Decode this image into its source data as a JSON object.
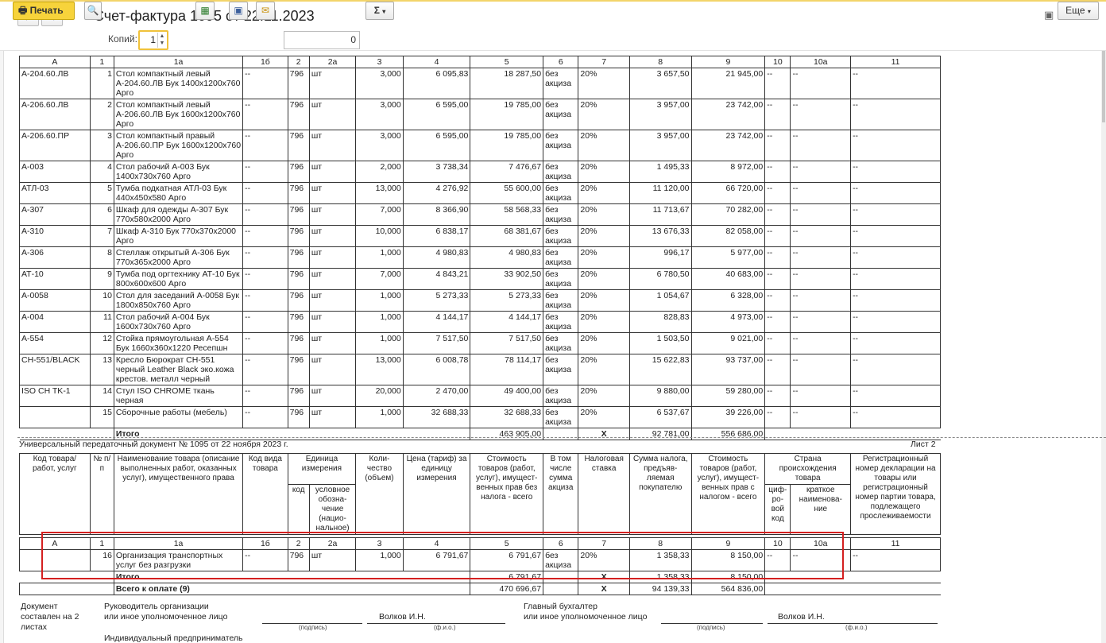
{
  "window": {
    "title": "Счет-фактура 1095 от 22.11.2023",
    "back": "←",
    "forward": "→"
  },
  "toolbar": {
    "print_label": "Печать",
    "copies_label": "Копий:",
    "copies_value": "1",
    "number_value": "0",
    "sum_label": "Σ",
    "more_label": "Еще"
  },
  "table1": {
    "col_codes": [
      "А",
      "1",
      "1а",
      "1б",
      "2",
      "2а",
      "3",
      "4",
      "5",
      "6",
      "7",
      "8",
      "9",
      "10",
      "10а",
      "11"
    ],
    "rows": [
      {
        "code": "А-204.60.ЛВ",
        "n": "1",
        "name": "Стол компактный левый А-204.60.ЛВ Бук 1400х1200х760 Арго",
        "kind": "--",
        "unit": "796",
        "unitname": "шт",
        "qty": "3,000",
        "price": "6 095,83",
        "cost": "18 287,50",
        "excise": "без акциза",
        "rate": "20%",
        "tax": "3 657,50",
        "total": "21 945,00",
        "c10": "--",
        "c10a": "--",
        "c11": "--"
      },
      {
        "code": "А-206.60.ЛВ",
        "n": "2",
        "name": "Стол компактный левый А-206.60.ЛВ Бук 1600х1200х760 Арго",
        "kind": "--",
        "unit": "796",
        "unitname": "шт",
        "qty": "3,000",
        "price": "6 595,00",
        "cost": "19 785,00",
        "excise": "без акциза",
        "rate": "20%",
        "tax": "3 957,00",
        "total": "23 742,00",
        "c10": "--",
        "c10a": "--",
        "c11": "--"
      },
      {
        "code": "А-206.60.ПР",
        "n": "3",
        "name": "Стол компактный правый А-206.60.ПР Бук 1600х1200х760 Арго",
        "kind": "--",
        "unit": "796",
        "unitname": "шт",
        "qty": "3,000",
        "price": "6 595,00",
        "cost": "19 785,00",
        "excise": "без акциза",
        "rate": "20%",
        "tax": "3 957,00",
        "total": "23 742,00",
        "c10": "--",
        "c10a": "--",
        "c11": "--"
      },
      {
        "code": "А-003",
        "n": "4",
        "name": "Стол рабочий А-003 Бук 1400х730х760 Арго",
        "kind": "--",
        "unit": "796",
        "unitname": "шт",
        "qty": "2,000",
        "price": "3 738,34",
        "cost": "7 476,67",
        "excise": "без акциза",
        "rate": "20%",
        "tax": "1 495,33",
        "total": "8 972,00",
        "c10": "--",
        "c10a": "--",
        "c11": "--"
      },
      {
        "code": "АТЛ-03",
        "n": "5",
        "name": "Тумба подкатная АТЛ-03 Бук 440х450х580 Арго",
        "kind": "--",
        "unit": "796",
        "unitname": "шт",
        "qty": "13,000",
        "price": "4 276,92",
        "cost": "55 600,00",
        "excise": "без акциза",
        "rate": "20%",
        "tax": "11 120,00",
        "total": "66 720,00",
        "c10": "--",
        "c10a": "--",
        "c11": "--"
      },
      {
        "code": "А-307",
        "n": "6",
        "name": "Шкаф для одежды А-307 Бук 770х580х2000 Арго",
        "kind": "--",
        "unit": "796",
        "unitname": "шт",
        "qty": "7,000",
        "price": "8 366,90",
        "cost": "58 568,33",
        "excise": "без акциза",
        "rate": "20%",
        "tax": "11 713,67",
        "total": "70 282,00",
        "c10": "--",
        "c10a": "--",
        "c11": "--"
      },
      {
        "code": "А-310",
        "n": "7",
        "name": "Шкаф А-310 Бук 770х370х2000 Арго",
        "kind": "--",
        "unit": "796",
        "unitname": "шт",
        "qty": "10,000",
        "price": "6 838,17",
        "cost": "68 381,67",
        "excise": "без акциза",
        "rate": "20%",
        "tax": "13 676,33",
        "total": "82 058,00",
        "c10": "--",
        "c10a": "--",
        "c11": "--"
      },
      {
        "code": "А-306",
        "n": "8",
        "name": "Стеллаж открытый А-306 Бук 770х365х2000 Арго",
        "kind": "--",
        "unit": "796",
        "unitname": "шт",
        "qty": "1,000",
        "price": "4 980,83",
        "cost": "4 980,83",
        "excise": "без акциза",
        "rate": "20%",
        "tax": "996,17",
        "total": "5 977,00",
        "c10": "--",
        "c10a": "--",
        "c11": "--"
      },
      {
        "code": "АТ-10",
        "n": "9",
        "name": "Тумба под оргтехнику АТ-10 Бук 800х600х600 Арго",
        "kind": "--",
        "unit": "796",
        "unitname": "шт",
        "qty": "7,000",
        "price": "4 843,21",
        "cost": "33 902,50",
        "excise": "без акциза",
        "rate": "20%",
        "tax": "6 780,50",
        "total": "40 683,00",
        "c10": "--",
        "c10a": "--",
        "c11": "--"
      },
      {
        "code": "А-0058",
        "n": "10",
        "name": "Стол для заседаний А-0058 Бук 1800х850х760 Арго",
        "kind": "--",
        "unit": "796",
        "unitname": "шт",
        "qty": "1,000",
        "price": "5 273,33",
        "cost": "5 273,33",
        "excise": "без акциза",
        "rate": "20%",
        "tax": "1 054,67",
        "total": "6 328,00",
        "c10": "--",
        "c10a": "--",
        "c11": "--"
      },
      {
        "code": "А-004",
        "n": "11",
        "name": "Стол рабочий А-004 Бук 1600х730х760 Арго",
        "kind": "--",
        "unit": "796",
        "unitname": "шт",
        "qty": "1,000",
        "price": "4 144,17",
        "cost": "4 144,17",
        "excise": "без акциза",
        "rate": "20%",
        "tax": "828,83",
        "total": "4 973,00",
        "c10": "--",
        "c10a": "--",
        "c11": "--"
      },
      {
        "code": "А-554",
        "n": "12",
        "name": "Стойка прямоугольная А-554 Бук 1660х360х1220 Ресепшн",
        "kind": "--",
        "unit": "796",
        "unitname": "шт",
        "qty": "1,000",
        "price": "7 517,50",
        "cost": "7 517,50",
        "excise": "без акциза",
        "rate": "20%",
        "tax": "1 503,50",
        "total": "9 021,00",
        "c10": "--",
        "c10a": "--",
        "c11": "--"
      },
      {
        "code": "CH-551/BLACK",
        "n": "13",
        "name": "Кресло Бюрократ CH-551 черный Leather Black эко.кожа крестов. металл черный",
        "kind": "--",
        "unit": "796",
        "unitname": "шт",
        "qty": "13,000",
        "price": "6 008,78",
        "cost": "78 114,17",
        "excise": "без акциза",
        "rate": "20%",
        "tax": "15 622,83",
        "total": "93 737,00",
        "c10": "--",
        "c10a": "--",
        "c11": "--"
      },
      {
        "code": "ISO CH TK-1",
        "n": "14",
        "name": "Стул ISO CHROME ткань черная",
        "kind": "--",
        "unit": "796",
        "unitname": "шт",
        "qty": "20,000",
        "price": "2 470,00",
        "cost": "49 400,00",
        "excise": "без акциза",
        "rate": "20%",
        "tax": "9 880,00",
        "total": "59 280,00",
        "c10": "--",
        "c10a": "--",
        "c11": "--"
      },
      {
        "code": "",
        "n": "15",
        "name": "Сборочные работы (мебель)",
        "kind": "--",
        "unit": "796",
        "unitname": "шт",
        "qty": "1,000",
        "price": "32 688,33",
        "cost": "32 688,33",
        "excise": "без акциза",
        "rate": "20%",
        "tax": "6 537,67",
        "total": "39 226,00",
        "c10": "--",
        "c10a": "--",
        "c11": "--"
      }
    ],
    "total_label": "Итого",
    "total_cost": "463 905,00",
    "total_x": "X",
    "total_tax": "92 781,00",
    "total_sum": "556 686,00"
  },
  "page2": {
    "header": "Универсальный передаточный документ № 1095 от 22 ноября 2023 г.",
    "sheet": "Лист 2",
    "headers": {
      "code": "Код товара/ работ, услуг",
      "n": "№ п/п",
      "name": "Наименование товара (описание выполненных работ, оказанных услуг), имущественного права",
      "kind": "Код вида товара",
      "unit_group": "Единица измерения",
      "unit_code": "код",
      "unit_name": "условное обозна-чение (нацио-нальное)",
      "qty": "Коли-чество (объем)",
      "price": "Цена (тариф) за единицу измерения",
      "cost": "Стоимость товаров (работ, услуг), имущест-венных прав без налога - всего",
      "excise": "В том числе сумма акциза",
      "rate": "Налоговая ставка",
      "tax": "Сумма налога, предъяв-ляемая покупателю",
      "total": "Стоимость товаров (работ, услуг), имущест-венных прав с налогом - всего",
      "country_group": "Страна происхождения товара",
      "country_code": "циф-ро-вой код",
      "country_name": "краткое наименова-ние",
      "decl": "Регистрационный номер декларации на товары или регистрационный номер партии товара, подлежащего прослеживаемости"
    },
    "row": {
      "code": "",
      "n": "16",
      "name": "Организация транспортных услуг без разгрузки",
      "kind": "--",
      "unit": "796",
      "unitname": "шт",
      "qty": "1,000",
      "price": "6 791,67",
      "cost": "6 791,67",
      "excise": "без акциза",
      "rate": "20%",
      "tax": "1 358,33",
      "total": "8 150,00",
      "c10": "--",
      "c10a": "--",
      "c11": "--"
    },
    "total_label": "Итого",
    "total_cost": "6 791,67",
    "total_x": "X",
    "total_tax": "1 358,33",
    "total_sum": "8 150,00",
    "grand_label": "Всего к оплате (9)",
    "grand_cost": "470 696,67",
    "grand_x": "X",
    "grand_tax": "94 139,33",
    "grand_sum": "564 836,00"
  },
  "footer": {
    "doc_made": "Документ составлен на 2 листах",
    "head_label1": "Руководитель организации",
    "head_label2": "или иное уполномоченное лицо",
    "head_name": "Волков И.Н.",
    "sign_hint": "(подпись)",
    "fio_hint": "(ф.и.о.)",
    "acc_label1": "Главный бухгалтер",
    "acc_label2": "или иное уполномоченное лицо",
    "acc_name": "Волков И.Н.",
    "ip_label": "Индивидуальный предприниматель"
  }
}
